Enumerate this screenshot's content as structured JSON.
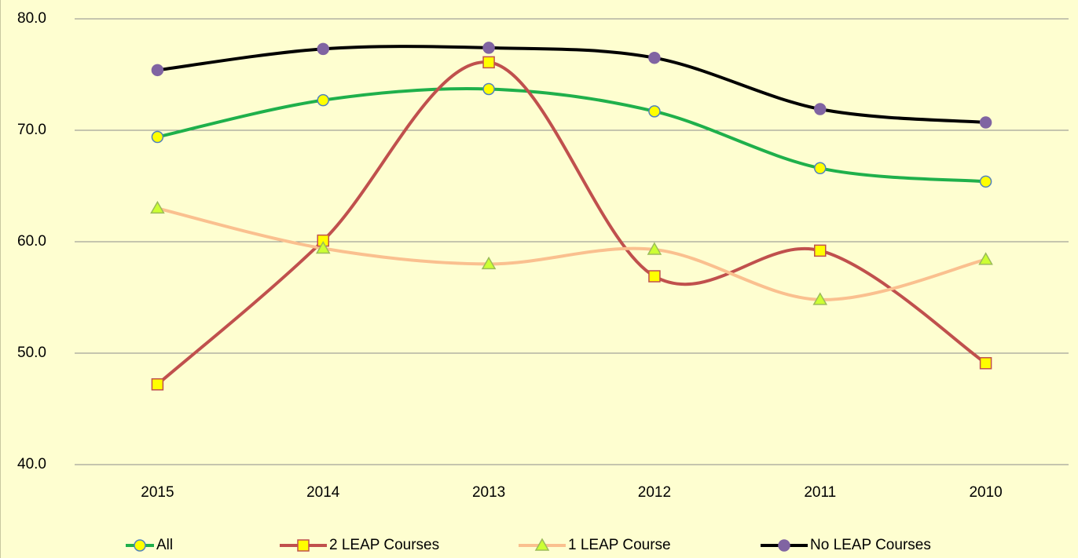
{
  "chart_data": {
    "type": "line",
    "smooth": true,
    "categories": [
      "2015",
      "2014",
      "2013",
      "2012",
      "2011",
      "2010"
    ],
    "series": [
      {
        "name": "All",
        "color": "#1fb04b",
        "marker": "circle",
        "marker_fill": "#ffff00",
        "marker_stroke": "#4f81bd",
        "values": [
          69.4,
          72.7,
          73.7,
          71.7,
          66.6,
          65.4
        ]
      },
      {
        "name": "2 LEAP Courses",
        "color": "#c0504d",
        "marker": "square",
        "marker_fill": "#ffff00",
        "marker_stroke": "#c0504d",
        "values": [
          47.2,
          60.1,
          76.1,
          56.9,
          59.2,
          49.1
        ]
      },
      {
        "name": "1 LEAP Course",
        "color": "#fac08f",
        "marker": "triangle",
        "marker_fill": "#ccff33",
        "marker_stroke": "#9bbb59",
        "values": [
          63.0,
          59.4,
          58.0,
          59.3,
          54.8,
          58.4
        ]
      },
      {
        "name": "No LEAP Courses",
        "color": "#000000",
        "marker": "circle",
        "marker_fill": "#8064a2",
        "marker_stroke": "#8064a2",
        "values": [
          75.4,
          77.3,
          77.4,
          76.5,
          71.9,
          70.7
        ]
      }
    ],
    "ylim": [
      40,
      80
    ],
    "yticks": [
      {
        "value": 40,
        "label": "40.0"
      },
      {
        "value": 50,
        "label": "50.0"
      },
      {
        "value": 60,
        "label": "60.0"
      },
      {
        "value": 70,
        "label": "70.0"
      },
      {
        "value": 80,
        "label": "80.0"
      }
    ],
    "grid": true,
    "legend": "bottom"
  }
}
